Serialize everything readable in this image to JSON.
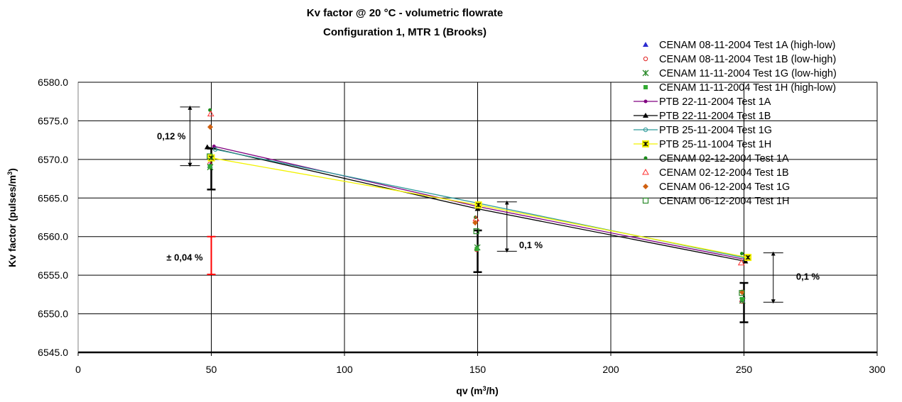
{
  "chart_data": {
    "type": "scatter",
    "title": "Kv factor @ 20 °C - volumetric flowrate",
    "subtitle": "Configuration 1, MTR 1 (Brooks)",
    "xlabel": "qv (m³/h)",
    "ylabel": "Kv factor (pulses/m³)",
    "xlim": [
      0,
      300
    ],
    "ylim": [
      6545.0,
      6580.0
    ],
    "xticks": [
      "0",
      "50",
      "100",
      "150",
      "200",
      "250",
      "300"
    ],
    "yticks": [
      "6545.0",
      "6550.0",
      "6555.0",
      "6560.0",
      "6565.0",
      "6570.0",
      "6575.0",
      "6580.0"
    ],
    "grid": true,
    "legend_position": "top-right",
    "series": [
      {
        "name": "CENAM 08-11-2004 Test 1A (high-low)",
        "color": "#2b2bd0",
        "marker": "triangle-filled",
        "line": false,
        "x": [
          49.5,
          149.8,
          249.3
        ],
        "y": [
          6569.2,
          6558.5,
          6551.8
        ]
      },
      {
        "name": "CENAM 08-11-2004 Test 1B (low-high)",
        "color": "#e02020",
        "marker": "circle-open",
        "line": false,
        "x": [
          49.4,
          149.6,
          249.2
        ],
        "y": [
          6569.4,
          6558.3,
          6551.6
        ]
      },
      {
        "name": "CENAM 11-11-2004 Test 1G (low-high)",
        "color": "#2a8a2a",
        "marker": "x-star",
        "line": false,
        "x": [
          49.6,
          149.9,
          249.4
        ],
        "y": [
          6569.0,
          6558.6,
          6551.7
        ]
      },
      {
        "name": "CENAM 11-11-2004 Test 1H (high-low)",
        "color": "#33aa33",
        "marker": "square-filled",
        "line": false,
        "x": [
          49.5,
          149.7,
          249.3
        ],
        "y": [
          6569.1,
          6558.4,
          6551.9
        ]
      },
      {
        "name": "PTB 22-11-2004 Test 1A",
        "color": "#800080",
        "marker": "dot",
        "line": true,
        "x": [
          51,
          150,
          251
        ],
        "y": [
          6571.7,
          6563.9,
          6557.0
        ]
      },
      {
        "name": "PTB 22-11-2004 Test 1B",
        "color": "#000000",
        "marker": "triangle-filled",
        "line": true,
        "x": [
          48.5,
          150,
          250.5
        ],
        "y": [
          6571.6,
          6563.6,
          6556.8
        ]
      },
      {
        "name": "PTB 25-11-2004 Test 1G",
        "color": "#2e9a9a",
        "marker": "circle-open",
        "line": true,
        "x": [
          51.5,
          150.5,
          251
        ],
        "y": [
          6571.3,
          6564.3,
          6557.2
        ]
      },
      {
        "name": "PTB 25-11-1004 Test 1H",
        "color": "#f2f200",
        "marker": "x-square",
        "line": true,
        "x": [
          50,
          150.3,
          251.5
        ],
        "y": [
          6570.2,
          6564.1,
          6557.3
        ]
      },
      {
        "name": "CENAM 02-12-2004 Test 1A",
        "color": "#1a8a1a",
        "marker": "dot",
        "line": false,
        "x": [
          49.5,
          149.2,
          249.2
        ],
        "y": [
          6576.4,
          6562.5,
          6557.8
        ]
      },
      {
        "name": "CENAM 02-12-2004 Test 1B",
        "color": "#ff3030",
        "marker": "triangle-open",
        "line": false,
        "x": [
          49.8,
          149.4,
          249.0
        ],
        "y": [
          6575.9,
          6562.3,
          6556.6
        ]
      },
      {
        "name": "CENAM 06-12-2004 Test 1G",
        "color": "#d06010",
        "marker": "diamond-filled",
        "line": false,
        "x": [
          49.6,
          149.1,
          249.3
        ],
        "y": [
          6574.2,
          6561.8,
          6552.8
        ]
      },
      {
        "name": "CENAM 06-12-2004 Test 1H",
        "color": "#2a8a2a",
        "marker": "square-open",
        "line": false,
        "x": [
          49.4,
          149.5,
          249.2
        ],
        "y": [
          6570.4,
          6560.7,
          6552.7
        ]
      }
    ],
    "error_bars": [
      {
        "x": 50,
        "low": 6566.1,
        "high": 6571.4,
        "color": "#000000"
      },
      {
        "x": 150,
        "low": 6555.4,
        "high": 6560.8,
        "color": "#000000"
      },
      {
        "x": 250,
        "low": 6548.9,
        "high": 6554.0,
        "color": "#000000"
      },
      {
        "x": 50,
        "low": 6555.1,
        "high": 6560.0,
        "color": "#ff0000"
      }
    ],
    "range_arrows": [
      {
        "x": 42,
        "low": 6569.2,
        "high": 6576.8
      },
      {
        "x": 161,
        "low": 6558.1,
        "high": 6564.5
      },
      {
        "x": 261,
        "low": 6551.5,
        "high": 6557.9
      }
    ],
    "annotations": [
      {
        "text": "0,12 %",
        "x": 35,
        "y": 6572.6
      },
      {
        "text": "± 0,04 %",
        "x": 40,
        "y": 6556.9
      },
      {
        "text": "0,1 %",
        "x": 170,
        "y": 6558.5
      },
      {
        "text": "0,1 %",
        "x": 274,
        "y": 6554.4
      }
    ]
  }
}
